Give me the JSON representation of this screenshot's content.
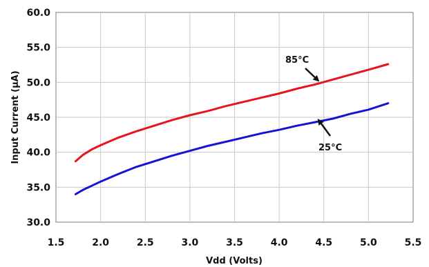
{
  "chart_data": {
    "type": "line",
    "title": "",
    "xlabel": "Vdd (Volts)",
    "ylabel": "Input Current (μA)",
    "xlim": [
      1.5,
      5.5
    ],
    "ylim": [
      30.0,
      60.0
    ],
    "xticks": [
      "1.5",
      "2.0",
      "2.5",
      "3.0",
      "3.5",
      "4.0",
      "4.5",
      "5.0",
      "5.5"
    ],
    "yticks": [
      "30.0",
      "35.0",
      "40.0",
      "45.0",
      "50.0",
      "55.0",
      "60.0"
    ],
    "grid": true,
    "series": [
      {
        "name": "85°C",
        "color": "#e8141c",
        "x": [
          1.72,
          1.8,
          1.9,
          2.0,
          2.2,
          2.4,
          2.6,
          2.8,
          3.0,
          3.2,
          3.4,
          3.6,
          3.8,
          4.0,
          4.2,
          4.4,
          4.6,
          4.8,
          5.0,
          5.22
        ],
        "y": [
          38.7,
          39.6,
          40.4,
          41.0,
          42.1,
          43.0,
          43.8,
          44.6,
          45.3,
          45.9,
          46.6,
          47.2,
          47.8,
          48.4,
          49.1,
          49.7,
          50.4,
          51.1,
          51.8,
          52.6
        ]
      },
      {
        "name": "25°C",
        "color": "#1414d4",
        "x": [
          1.72,
          1.8,
          1.9,
          2.0,
          2.2,
          2.4,
          2.6,
          2.8,
          3.0,
          3.2,
          3.4,
          3.6,
          3.8,
          4.0,
          4.2,
          4.4,
          4.6,
          4.8,
          5.0,
          5.22
        ],
        "y": [
          34.0,
          34.6,
          35.2,
          35.8,
          36.9,
          37.9,
          38.7,
          39.5,
          40.2,
          40.9,
          41.5,
          42.1,
          42.7,
          43.2,
          43.8,
          44.3,
          44.8,
          45.5,
          46.1,
          47.0
        ]
      }
    ],
    "annotations": [
      {
        "text": "85°C",
        "series": 0,
        "arrow_to": [
          4.45,
          50.1
        ]
      },
      {
        "text": "25°C",
        "series": 1,
        "arrow_to": [
          4.43,
          44.8
        ]
      }
    ]
  }
}
